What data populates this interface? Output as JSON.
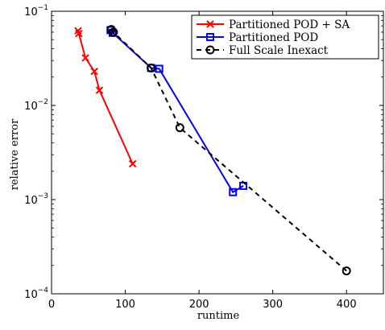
{
  "chart_data": {
    "type": "line",
    "xlabel": "runtime",
    "ylabel": "relative error",
    "xlim": [
      0,
      450
    ],
    "ylim": [
      0.0001,
      0.1
    ],
    "yscale": "log",
    "x_ticks": [
      0,
      100,
      200,
      300,
      400
    ],
    "x_tick_labels": [
      "0",
      "100",
      "200",
      "300",
      "400"
    ],
    "y_ticks": [
      0.0001,
      0.001,
      0.01,
      0.1
    ],
    "y_tick_labels": [
      {
        "base": "10",
        "exp": "−4"
      },
      {
        "base": "10",
        "exp": "−3"
      },
      {
        "base": "10",
        "exp": "−2"
      },
      {
        "base": "10",
        "exp": "−1"
      }
    ],
    "grid": false,
    "legend_position": "top-right",
    "series": [
      {
        "name": "Partitioned POD + SA",
        "color": "#ff0000",
        "line_style": "solid",
        "marker": "x",
        "points": [
          [
            36,
            0.062
          ],
          [
            37,
            0.058
          ],
          [
            46,
            0.032
          ],
          [
            58,
            0.023
          ],
          [
            65,
            0.0145
          ],
          [
            110,
            0.0024
          ]
        ]
      },
      {
        "name": "Partitioned POD",
        "color": "#0000ff",
        "line_style": "solid",
        "marker": "square",
        "points": [
          [
            80,
            0.063
          ],
          [
            83,
            0.059
          ],
          [
            135,
            0.025
          ],
          [
            146,
            0.0245
          ],
          [
            246,
            0.0012
          ],
          [
            260,
            0.0014
          ]
        ]
      },
      {
        "name": "Full Scale Inexact",
        "color": "#000000",
        "line_style": "dashed",
        "marker": "circle",
        "points": [
          [
            81,
            0.064
          ],
          [
            84,
            0.06
          ],
          [
            135,
            0.025
          ],
          [
            174,
            0.0058
          ],
          [
            400,
            0.000175
          ]
        ]
      }
    ]
  }
}
